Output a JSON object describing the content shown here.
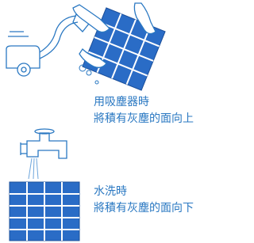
{
  "sections": [
    {
      "lines": [
        "用吸塵器時",
        "將積有灰塵的面向上"
      ]
    },
    {
      "lines": [
        "水洗時",
        "將積有灰塵的面向下"
      ]
    }
  ]
}
